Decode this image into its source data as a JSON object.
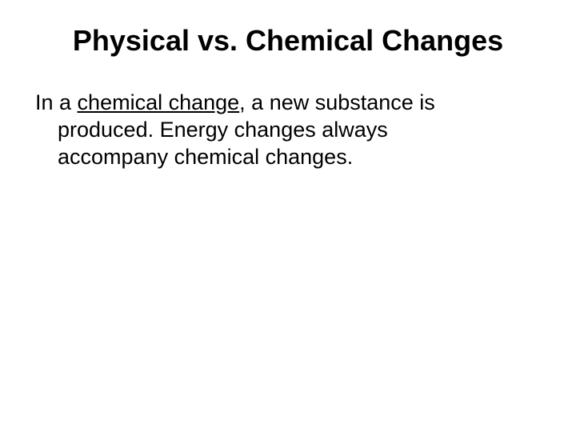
{
  "slide": {
    "title": "Physical vs. Chemical Changes",
    "body": {
      "prefix": "In a ",
      "emphasized": "chemical change",
      "line1_suffix": ", a new substance is",
      "line2": "produced.  Energy changes always",
      "line3": "accompany chemical changes."
    }
  },
  "colors": {
    "background": "#ffffff",
    "text": "#000000"
  },
  "typography": {
    "title_fontsize": 36,
    "body_fontsize": 27,
    "font_family": "Arial"
  }
}
